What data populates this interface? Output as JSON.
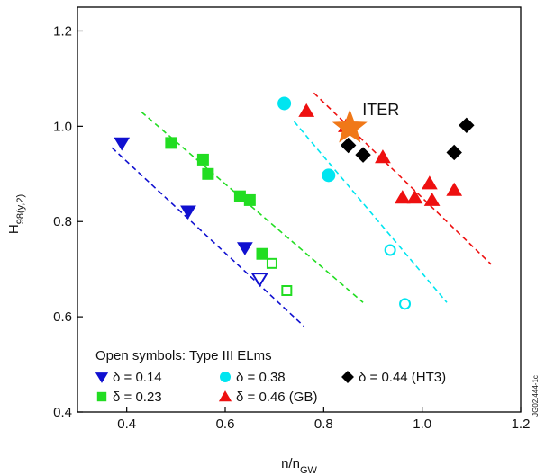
{
  "chart_data": {
    "type": "scatter",
    "xlabel": "n/n",
    "xlabel_sub": "GW",
    "ylabel": "H",
    "ylabel_sub": "98(y,2)",
    "xlim": [
      0.3,
      1.2
    ],
    "ylim": [
      0.4,
      1.25
    ],
    "xticks": [
      0.4,
      0.6,
      0.8,
      1.0,
      1.2
    ],
    "yticks": [
      0.4,
      0.6,
      0.8,
      1.0,
      1.2
    ],
    "xtick_labels": [
      "0.4",
      "0.6",
      "0.8",
      "1.0",
      "1.2"
    ],
    "ytick_labels": [
      "0.4",
      "0.6",
      "0.8",
      "1.0",
      "1.2"
    ],
    "legend_header": "Open symbols: Type III ELms",
    "legend_placement": "bottom-left, inside plot",
    "series": [
      {
        "name": "δ = 0.14",
        "marker": "triangle-down",
        "color": "#1010d0",
        "filled": [
          [
            0.39,
            0.965
          ],
          [
            0.525,
            0.822
          ],
          [
            0.64,
            0.745
          ]
        ],
        "open": [
          [
            0.67,
            0.68
          ]
        ],
        "fit": [
          [
            0.37,
            0.955
          ],
          [
            0.76,
            0.58
          ]
        ]
      },
      {
        "name": "δ = 0.23",
        "marker": "square",
        "color": "#22dd22",
        "filled": [
          [
            0.49,
            0.965
          ],
          [
            0.555,
            0.93
          ],
          [
            0.565,
            0.9
          ],
          [
            0.63,
            0.853
          ],
          [
            0.65,
            0.845
          ],
          [
            0.675,
            0.732
          ]
        ],
        "open": [
          [
            0.695,
            0.712
          ],
          [
            0.725,
            0.655
          ]
        ],
        "fit": [
          [
            0.43,
            1.03
          ],
          [
            0.88,
            0.63
          ]
        ]
      },
      {
        "name": "δ = 0.38",
        "marker": "circle",
        "color": "#00e5f0",
        "filled": [
          [
            0.72,
            1.048
          ],
          [
            0.81,
            0.897
          ]
        ],
        "open": [
          [
            0.935,
            0.74
          ],
          [
            0.965,
            0.627
          ]
        ],
        "fit": [
          [
            0.74,
            1.01
          ],
          [
            1.05,
            0.63
          ]
        ]
      },
      {
        "name": "δ = 0.46 (GB)",
        "marker": "triangle-up",
        "color": "#ee1010",
        "filled": [
          [
            0.765,
            1.032
          ],
          [
            0.845,
            1.0
          ],
          [
            0.92,
            0.935
          ],
          [
            0.96,
            0.85
          ],
          [
            0.985,
            0.85
          ],
          [
            1.015,
            0.88
          ],
          [
            1.02,
            0.845
          ],
          [
            1.065,
            0.866
          ]
        ],
        "open": [],
        "fit": [
          [
            0.78,
            1.07
          ],
          [
            1.14,
            0.71
          ]
        ]
      },
      {
        "name": "δ = 0.44 (HT3)",
        "marker": "diamond",
        "color": "#000000",
        "filled": [
          [
            0.85,
            0.96
          ],
          [
            0.88,
            0.94
          ],
          [
            1.065,
            0.945
          ],
          [
            1.09,
            1.002
          ]
        ],
        "open": [],
        "fit": null
      }
    ],
    "annotations": [
      {
        "text": "ITER",
        "marker": "star",
        "color": "#f07818",
        "at": [
          0.853,
          0.997
        ]
      }
    ],
    "side_code": "JG02.444-1c"
  }
}
